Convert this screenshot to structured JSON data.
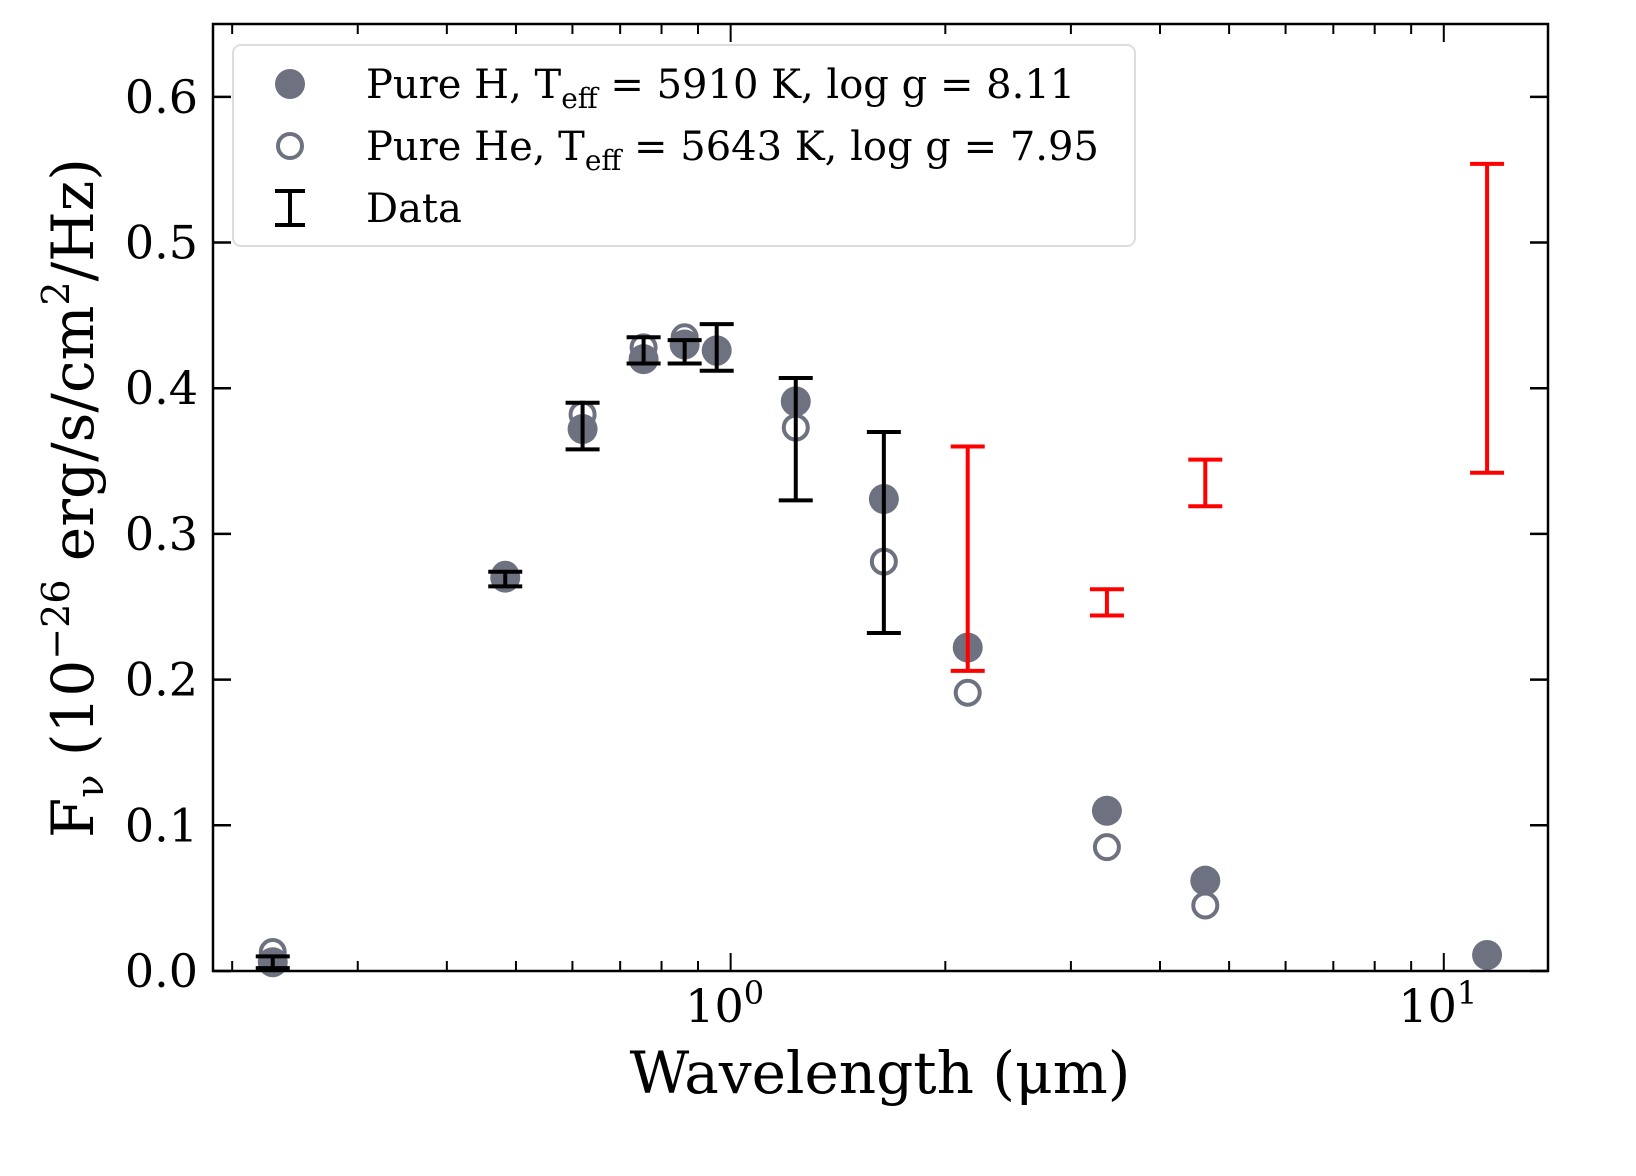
{
  "chart_data": {
    "type": "scatter",
    "title": "",
    "xlabel": "Wavelength (μm)",
    "ylabel": "F_ν (10^−26 erg/s/cm^2/Hz)",
    "ylabel_parts": {
      "main": "F",
      "sub": "ν",
      "open": " (10",
      "sup": "−26",
      "mid": " erg/s/cm",
      "sup2": "2",
      "end": "/Hz)"
    },
    "xscale": "log",
    "xlim": [
      0.188,
      14.0
    ],
    "ylim": [
      0.0,
      0.65
    ],
    "xticks": [
      {
        "value": 1,
        "base": "10",
        "exp": "0"
      },
      {
        "value": 10,
        "base": "10",
        "exp": "1"
      }
    ],
    "yticks": [
      0.0,
      0.1,
      0.2,
      0.3,
      0.4,
      0.5,
      0.6
    ],
    "ytick_labels": [
      "0.0",
      "0.1",
      "0.2",
      "0.3",
      "0.4",
      "0.5",
      "0.6"
    ],
    "grid": false,
    "legend_placement": "top-left",
    "legend": [
      {
        "marker": "filled-circle",
        "text": "Pure H, T",
        "sub": "eff",
        "rest": " = 5910 K, log g = 8.11"
      },
      {
        "marker": "open-circle",
        "text": "Pure He, T",
        "sub": "eff",
        "rest": " = 5643 K, log g = 7.95"
      },
      {
        "marker": "errorbar",
        "text": "Data",
        "sub": "",
        "rest": ""
      }
    ],
    "colors": {
      "model": "#6e7280",
      "data": "#000000",
      "data_ir": "#ff0000"
    },
    "x": [
      0.228,
      0.483,
      0.62,
      0.755,
      0.862,
      0.956,
      1.234,
      1.64,
      2.15,
      3.37,
      4.63,
      11.5
    ],
    "series": [
      {
        "name": "Pure H",
        "marker": "filled",
        "values": [
          0.006,
          0.27,
          0.372,
          0.42,
          0.43,
          0.426,
          0.391,
          0.324,
          0.222,
          0.11,
          0.062,
          0.011
        ]
      },
      {
        "name": "Pure He",
        "marker": "open",
        "values": [
          0.013,
          0.272,
          0.382,
          0.428,
          0.435,
          0.425,
          0.373,
          0.281,
          0.191,
          0.085,
          0.045,
          0.011
        ]
      },
      {
        "name": "Data",
        "values": [
          0.006,
          0.269,
          0.374,
          0.426,
          0.425,
          0.428,
          0.365,
          0.301,
          0.283,
          0.253,
          0.335,
          0.448
        ],
        "errors": [
          0.004,
          0.005,
          0.016,
          0.009,
          0.008,
          0.016,
          0.042,
          0.069,
          0.077,
          0.009,
          0.016,
          0.106
        ],
        "colors": [
          "#000000",
          "#000000",
          "#000000",
          "#000000",
          "#000000",
          "#000000",
          "#000000",
          "#000000",
          "#ff0000",
          "#ff0000",
          "#ff0000",
          "#ff0000"
        ]
      }
    ]
  }
}
